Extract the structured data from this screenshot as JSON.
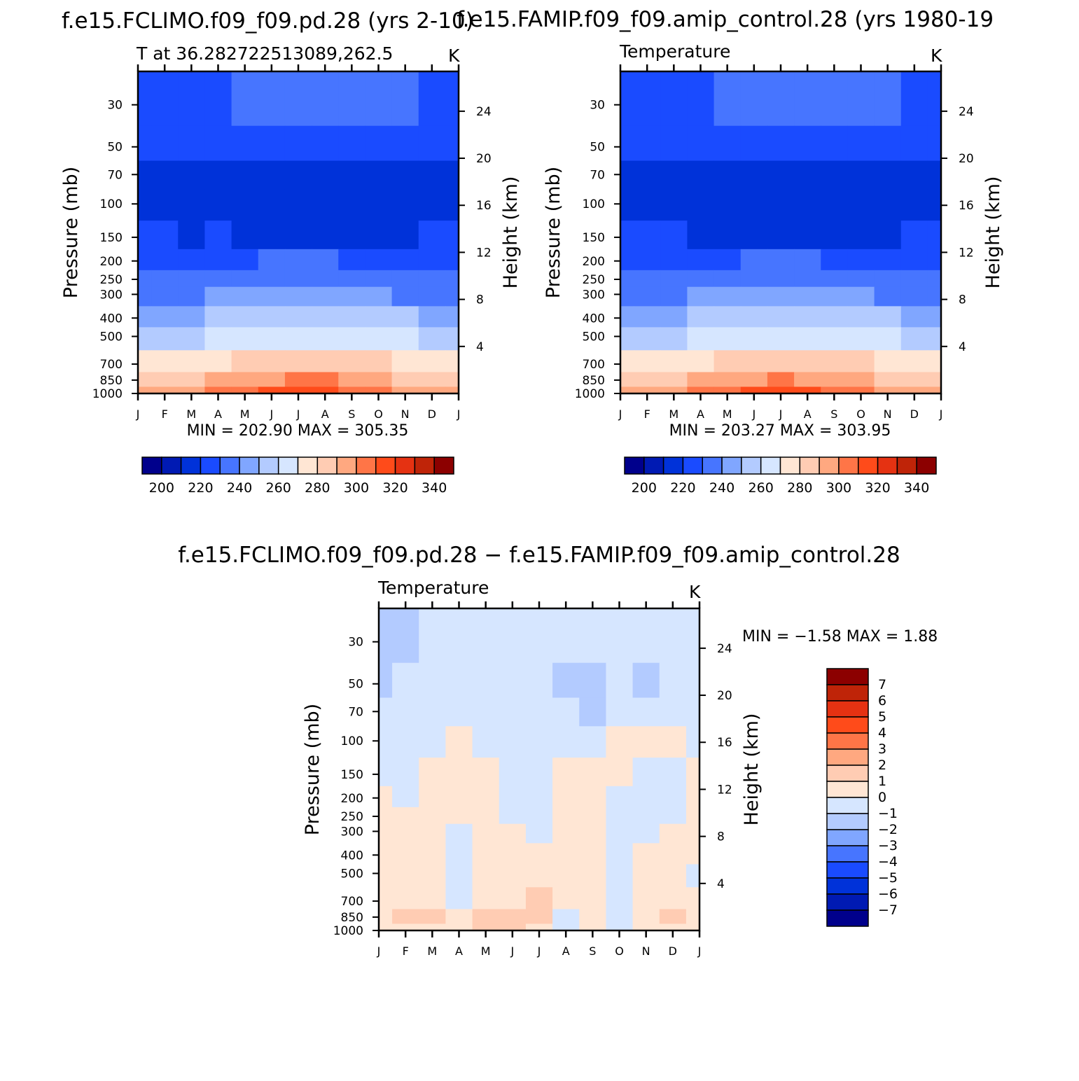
{
  "top_titles": {
    "left": "f.e15.FCLIMO.f09_f09.pd.28 (yrs 2-10)",
    "right": "f.e15.FAMIP.f09_f09.amip_control.28 (yrs 1980-19"
  },
  "diff_title": "f.e15.FCLIMO.f09_f09.pd.28 − f.e15.FAMIP.f09_f09.amip_control.28",
  "common": {
    "months": [
      "J",
      "F",
      "M",
      "A",
      "M",
      "J",
      "J",
      "A",
      "S",
      "O",
      "N",
      "D",
      "J"
    ],
    "pressure_ticks": [
      30,
      50,
      70,
      100,
      150,
      200,
      250,
      300,
      400,
      500,
      700,
      850,
      1000
    ],
    "height_ticks": [
      24,
      20,
      16,
      12,
      8,
      4
    ],
    "ylabel_left": "Pressure (mb)",
    "ylabel_right": "Height (km)",
    "unit": "K"
  },
  "colors": {
    "abs_palette": [
      "#00008c",
      "#001ab3",
      "#0032d9",
      "#1a4bff",
      "#4775ff",
      "#80a6ff",
      "#b3cbff",
      "#d6e6ff",
      "#ffe6d4",
      "#ffccb3",
      "#ffa880",
      "#ff7547",
      "#ff4b1a",
      "#e53212",
      "#bf2408",
      "#8c0000"
    ],
    "diff_palette": [
      "#00008c",
      "#001ab3",
      "#0032d9",
      "#1a4bff",
      "#4775ff",
      "#80a6ff",
      "#b3cbff",
      "#d6e6ff",
      "#ffe6d4",
      "#ffccb3",
      "#ffa880",
      "#ff7547",
      "#ff4b1a",
      "#e53212",
      "#bf2408",
      "#8c0000"
    ]
  },
  "chart_data": [
    {
      "type": "heatmap",
      "panel": "climo",
      "title": "T at 36.282722513089,262.5",
      "unit": "K",
      "xlabel": "",
      "ylabel": "Pressure (mb)",
      "ylabel_right": "Height (km)",
      "y_scale": "log",
      "ylim": [
        1000,
        20
      ],
      "months": [
        "J",
        "F",
        "M",
        "A",
        "M",
        "J",
        "J",
        "A",
        "S",
        "O",
        "N",
        "D",
        "J"
      ],
      "levels": [
        30,
        50,
        70,
        100,
        150,
        200,
        250,
        300,
        400,
        500,
        700,
        850,
        1000
      ],
      "values": [
        [
          216,
          217,
          218,
          219,
          221,
          223,
          224,
          224,
          225,
          223,
          220,
          218,
          216
        ],
        [
          212,
          212,
          213,
          213,
          214,
          215,
          215,
          215,
          216,
          214,
          213,
          213,
          212
        ],
        [
          208,
          208,
          208,
          208,
          208,
          209,
          209,
          209,
          209,
          208,
          208,
          208,
          208
        ],
        [
          206,
          206,
          206,
          206,
          205,
          205,
          205,
          205,
          205,
          205,
          206,
          206,
          206
        ],
        [
          212,
          211,
          209,
          211,
          205,
          204,
          204,
          204,
          204,
          205,
          207,
          211,
          212
        ],
        [
          218,
          218,
          218,
          218,
          219,
          220,
          221,
          221,
          219,
          218,
          218,
          218,
          218
        ],
        [
          222,
          222,
          223,
          224,
          226,
          228,
          228,
          228,
          227,
          225,
          224,
          223,
          222
        ],
        [
          227,
          227,
          228,
          230,
          232,
          234,
          235,
          235,
          234,
          231,
          229,
          228,
          227
        ],
        [
          238,
          238,
          239,
          242,
          245,
          248,
          249,
          249,
          247,
          243,
          241,
          239,
          238
        ],
        [
          247,
          247,
          249,
          252,
          255,
          258,
          259,
          259,
          257,
          253,
          250,
          249,
          247
        ],
        [
          263,
          264,
          266,
          269,
          273,
          276,
          278,
          277,
          275,
          270,
          267,
          265,
          263
        ],
        [
          272,
          274,
          277,
          281,
          285,
          288,
          291,
          290,
          286,
          280,
          276,
          274,
          272
        ],
        [
          281,
          283,
          287,
          291,
          296,
          301,
          305,
          303,
          297,
          290,
          285,
          283,
          281
        ]
      ],
      "min_max_label": "MIN = 202.90 MAX = 305.35",
      "colorbar_labels": [
        "200",
        "220",
        "240",
        "260",
        "280",
        "300",
        "320",
        "340"
      ]
    },
    {
      "type": "heatmap",
      "panel": "amip",
      "title": "Temperature",
      "unit": "K",
      "xlabel": "",
      "ylabel": "Pressure (mb)",
      "ylabel_right": "Height (km)",
      "y_scale": "log",
      "ylim": [
        1000,
        20
      ],
      "months": [
        "J",
        "F",
        "M",
        "A",
        "M",
        "J",
        "J",
        "A",
        "S",
        "O",
        "N",
        "D",
        "J"
      ],
      "levels": [
        30,
        50,
        70,
        100,
        150,
        200,
        250,
        300,
        400,
        500,
        700,
        850,
        1000
      ],
      "values": [
        [
          216,
          217,
          218,
          219,
          221,
          223,
          224,
          224,
          225,
          223,
          220,
          218,
          216
        ],
        [
          212,
          212,
          213,
          213,
          214,
          215,
          215,
          215,
          216,
          214,
          213,
          213,
          212
        ],
        [
          208,
          208,
          208,
          208,
          208,
          209,
          209,
          209,
          209,
          208,
          208,
          208,
          208
        ],
        [
          206,
          206,
          206,
          206,
          205,
          205,
          205,
          205,
          205,
          205,
          206,
          206,
          206
        ],
        [
          212,
          211,
          210,
          209,
          205,
          204,
          204,
          204,
          204,
          205,
          207,
          211,
          212
        ],
        [
          218,
          218,
          218,
          218,
          219,
          220,
          221,
          221,
          219,
          218,
          218,
          218,
          218
        ],
        [
          222,
          222,
          223,
          224,
          226,
          228,
          228,
          228,
          227,
          225,
          224,
          223,
          222
        ],
        [
          227,
          227,
          228,
          230,
          232,
          234,
          235,
          235,
          234,
          231,
          229,
          228,
          227
        ],
        [
          238,
          238,
          239,
          242,
          245,
          248,
          249,
          249,
          247,
          243,
          241,
          239,
          238
        ],
        [
          247,
          247,
          249,
          252,
          255,
          258,
          259,
          259,
          257,
          253,
          250,
          249,
          247
        ],
        [
          263,
          264,
          266,
          269,
          273,
          276,
          278,
          277,
          275,
          270,
          267,
          265,
          263
        ],
        [
          272,
          274,
          277,
          281,
          285,
          288,
          290,
          289,
          285,
          280,
          276,
          274,
          272
        ],
        [
          281,
          283,
          287,
          291,
          296,
          300,
          303,
          302,
          296,
          290,
          285,
          283,
          281
        ]
      ],
      "min_max_label": "MIN = 203.27 MAX = 303.95",
      "colorbar_labels": [
        "200",
        "220",
        "240",
        "260",
        "280",
        "300",
        "320",
        "340"
      ]
    },
    {
      "type": "heatmap",
      "panel": "diff",
      "title": "Temperature",
      "unit": "K",
      "xlabel": "",
      "ylabel": "Pressure (mb)",
      "ylabel_right": "Height (km)",
      "y_scale": "log",
      "ylim": [
        1000,
        20
      ],
      "months": [
        "J",
        "F",
        "M",
        "A",
        "M",
        "J",
        "J",
        "A",
        "S",
        "O",
        "N",
        "D",
        "J"
      ],
      "levels": [
        30,
        50,
        70,
        100,
        150,
        200,
        250,
        300,
        400,
        500,
        700,
        850,
        1000
      ],
      "values": [
        [
          -1.2,
          -1.1,
          -0.4,
          -0.3,
          -0.3,
          -0.3,
          -0.3,
          -0.4,
          -0.5,
          -0.4,
          -0.3,
          -0.4,
          -0.3
        ],
        [
          -1.1,
          -1.0,
          -0.4,
          -0.4,
          -0.4,
          -0.3,
          -0.3,
          -1.2,
          -1.3,
          -0.4,
          -1.1,
          -0.3,
          -0.3
        ],
        [
          -0.4,
          -0.5,
          -0.4,
          -0.3,
          -0.4,
          -0.3,
          -0.3,
          -0.5,
          -1.2,
          -0.4,
          -0.3,
          -0.5,
          -0.4
        ],
        [
          -0.5,
          -0.8,
          -0.4,
          0.3,
          -0.3,
          -0.4,
          -0.4,
          -0.3,
          -0.4,
          0.2,
          0.4,
          0.3,
          -0.3
        ],
        [
          -0.3,
          -0.4,
          0.3,
          0.4,
          0.2,
          -0.3,
          -0.5,
          0.3,
          0.4,
          0.3,
          -0.3,
          -0.3,
          0.2
        ],
        [
          0.3,
          -0.2,
          0.4,
          0.5,
          0.3,
          -0.3,
          -0.6,
          0.3,
          0.5,
          -0.3,
          -0.4,
          -0.2,
          0.3
        ],
        [
          0.4,
          0.3,
          0.3,
          0.4,
          0.3,
          -0.3,
          -0.2,
          0.3,
          0.4,
          -0.3,
          -0.3,
          -0.2,
          0.3
        ],
        [
          0.4,
          0.4,
          0.3,
          -0.3,
          0.3,
          0.4,
          -0.3,
          0.4,
          0.5,
          -0.4,
          -0.3,
          0.2,
          0.3
        ],
        [
          0.5,
          0.5,
          0.4,
          -0.4,
          0.4,
          0.5,
          0.4,
          0.4,
          0.5,
          -0.3,
          0.3,
          0.4,
          0.4
        ],
        [
          0.4,
          0.5,
          0.3,
          -0.4,
          0.3,
          0.5,
          0.5,
          0.5,
          0.4,
          -0.4,
          0.3,
          0.4,
          -0.3
        ],
        [
          0.4,
          0.5,
          0.4,
          -0.3,
          0.6,
          0.9,
          1.3,
          0.6,
          0.4,
          -0.5,
          0.4,
          0.4,
          0.3
        ],
        [
          0.2,
          1.3,
          1.2,
          0.4,
          1.4,
          1.6,
          1.3,
          -0.3,
          0.5,
          -0.6,
          0.4,
          1.3,
          0.3
        ],
        [
          0.1,
          0.9,
          0.8,
          0.3,
          1.0,
          1.1,
          0.9,
          -0.2,
          0.3,
          -0.4,
          0.3,
          0.9,
          0.2
        ]
      ],
      "min_max_label": "MIN = −1.58 MAX = 1.88",
      "colorbar_labels": [
        "7",
        "6",
        "5",
        "4",
        "3",
        "2",
        "1",
        "0",
        "−1",
        "−2",
        "−3",
        "−4",
        "−5",
        "−6",
        "−7"
      ]
    }
  ]
}
